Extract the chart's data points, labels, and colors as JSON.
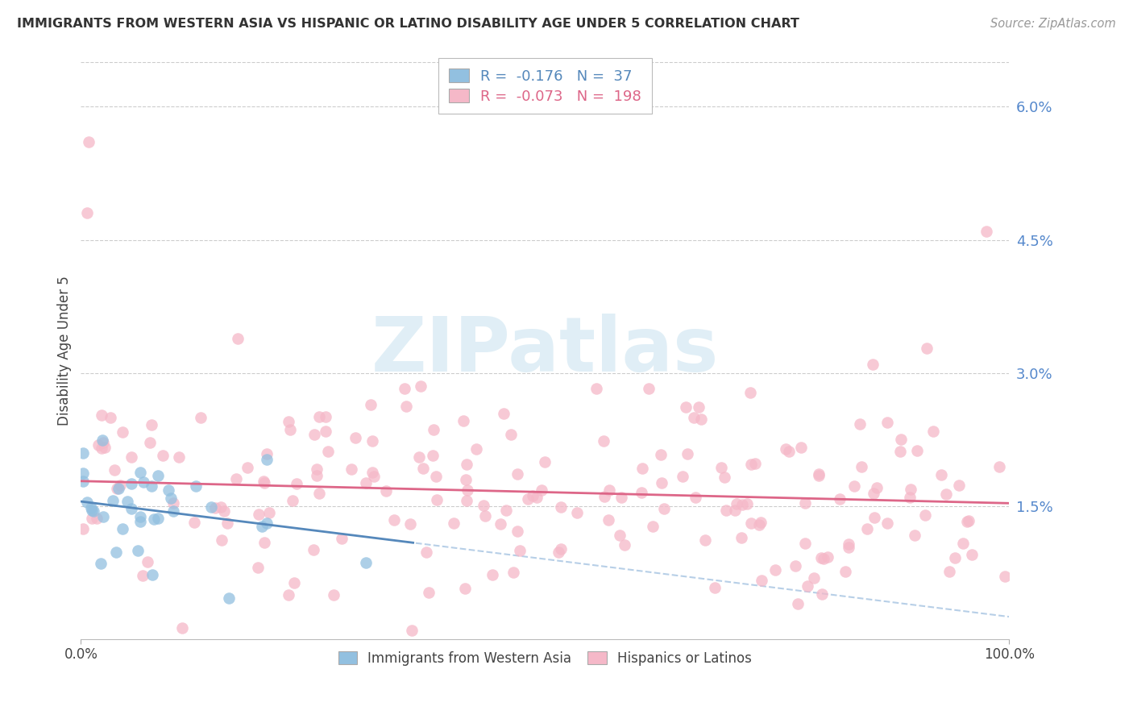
{
  "title": "IMMIGRANTS FROM WESTERN ASIA VS HISPANIC OR LATINO DISABILITY AGE UNDER 5 CORRELATION CHART",
  "source": "Source: ZipAtlas.com",
  "ylabel": "Disability Age Under 5",
  "xlim": [
    0,
    1.0
  ],
  "ylim": [
    0,
    0.065
  ],
  "ytick_vals": [
    0.015,
    0.03,
    0.045,
    0.06
  ],
  "ytick_labels": [
    "1.5%",
    "3.0%",
    "4.5%",
    "6.0%"
  ],
  "xtick_vals": [
    0.0,
    1.0
  ],
  "xtick_labels": [
    "0.0%",
    "100.0%"
  ],
  "legend_line1": "R =  -0.176   N =  37",
  "legend_line2": "R =  -0.073   N =  198",
  "blue_color": "#92c0e0",
  "pink_color": "#f5b8c8",
  "blue_line_color": "#5588bb",
  "pink_line_color": "#dd6688",
  "blue_line_color_dash": "#99bbdd",
  "watermark_color": "#cce4f0",
  "grid_color": "#cccccc",
  "right_tick_color": "#5588cc",
  "title_color": "#333333",
  "source_color": "#999999",
  "blue_intercept": 0.0155,
  "blue_slope": -0.013,
  "pink_intercept": 0.0178,
  "pink_slope": -0.0025
}
